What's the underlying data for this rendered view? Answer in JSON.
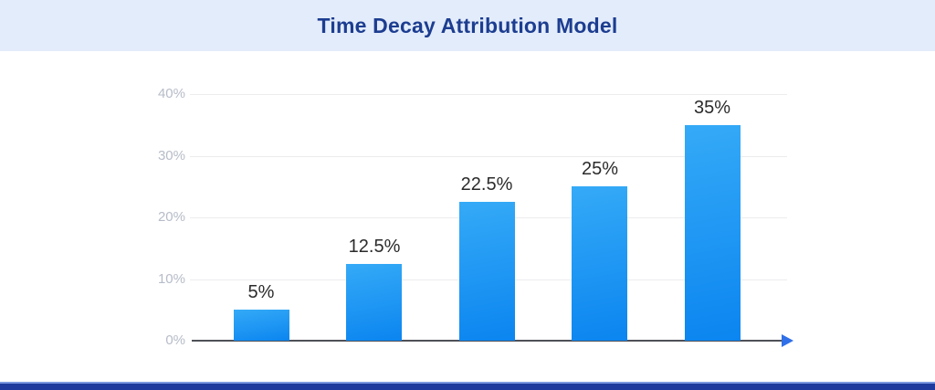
{
  "header": {
    "title": "Time Decay Attribution Model"
  },
  "colors": {
    "header_bg": "#e3ecfb",
    "title": "#1c3d90",
    "bar_top": "#35aaf7",
    "bar_bottom": "#0b85f0",
    "axis_line": "#4f5158",
    "arrow": "#2f6fe8",
    "gridline": "#ececef",
    "tick_label": "#b6bcc8",
    "value_label": "#2b2b2b",
    "footer_band": "#1d3a9c",
    "footer_line": "#7b99e0"
  },
  "chart_data": {
    "type": "bar",
    "title": "Time Decay Attribution Model",
    "values": [
      5,
      12.5,
      22.5,
      25,
      35
    ],
    "data_labels": [
      "5%",
      "12.5%",
      "22.5%",
      "25%",
      "35%"
    ],
    "y_ticks": [
      "40%",
      "30%",
      "20%",
      "10%",
      "0%"
    ],
    "ylim": [
      0,
      40
    ],
    "xlabel": "",
    "ylabel": "",
    "grid": "horizontal",
    "legend": "none",
    "x_axis_arrow": true,
    "categories": []
  }
}
